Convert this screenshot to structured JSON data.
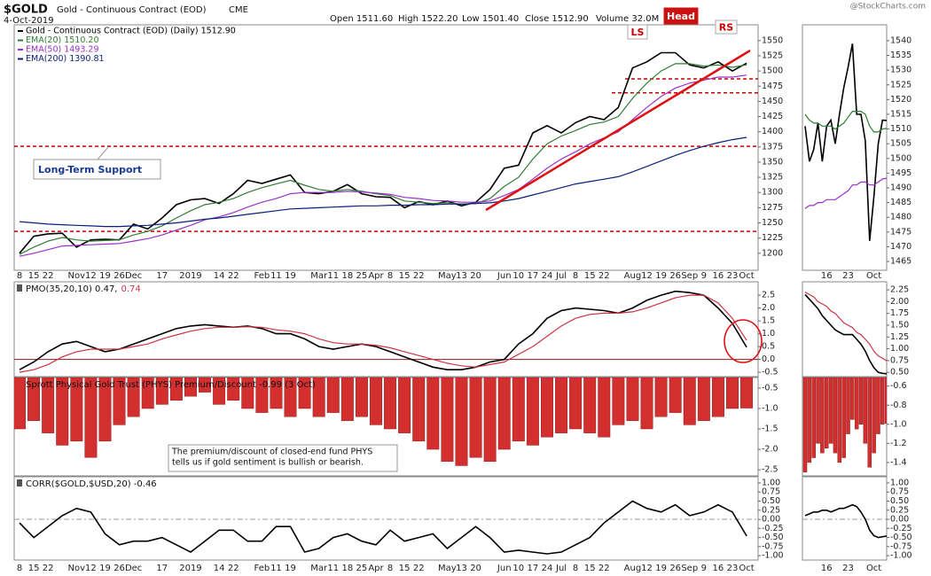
{
  "header": {
    "symbol": "$GOLD",
    "name": "Gold - Continuous Contract (EOD)",
    "exchange": "CME",
    "date": "4-Oct-2019",
    "quote": [
      "Open 1511.60",
      "High 1522.20",
      "Low 1501.40",
      "Close 1512.90",
      "Volume 32.0M"
    ],
    "credit": "@StockCharts.com"
  },
  "chart_data": [
    {
      "type": "line",
      "categories": [
        "8",
        "15",
        "22",
        null,
        "Nov",
        "12",
        "19",
        "26",
        "Dec",
        null,
        "17",
        null,
        "2019",
        null,
        "14",
        "22",
        null,
        "Feb",
        "11",
        "19",
        null,
        "Mar",
        "11",
        "18",
        "25",
        "Apr",
        "8",
        "15",
        "22",
        null,
        "May",
        "13",
        "20",
        null,
        "Jun",
        "10",
        "17",
        "24",
        "Jul",
        "8",
        "15",
        "22",
        null,
        "Aug",
        "12",
        "19",
        "26",
        "Sep",
        "9",
        "16",
        "23",
        "Oct"
      ],
      "series": [
        {
          "name": "Gold - Continuous Contract (EOD) (Daily) 1512.90",
          "color": "#000000",
          "values": [
            1200,
            1228,
            1232,
            1233,
            1210,
            1222,
            1223,
            1222,
            1248,
            1240,
            1258,
            1280,
            1288,
            1290,
            1282,
            1298,
            1320,
            1315,
            1322,
            1329,
            1300,
            1298,
            1302,
            1313,
            1298,
            1293,
            1292,
            1275,
            1285,
            1280,
            1286,
            1278,
            1284,
            1305,
            1340,
            1345,
            1398,
            1410,
            1398,
            1415,
            1425,
            1420,
            1440,
            1505,
            1515,
            1530,
            1530,
            1510,
            1505,
            1515,
            1500,
            1512.9
          ]
        },
        {
          "name": "EMA(20) 1510.20",
          "color": "#2e7d32",
          "values": [
            1198,
            1210,
            1220,
            1226,
            1222,
            1220,
            1221,
            1222,
            1230,
            1236,
            1245,
            1258,
            1270,
            1280,
            1284,
            1290,
            1300,
            1308,
            1314,
            1320,
            1312,
            1305,
            1302,
            1305,
            1302,
            1298,
            1295,
            1286,
            1284,
            1282,
            1283,
            1281,
            1282,
            1290,
            1310,
            1325,
            1355,
            1380,
            1393,
            1402,
            1412,
            1416,
            1425,
            1455,
            1480,
            1500,
            1512,
            1512,
            1508,
            1510,
            1506,
            1510.2
          ]
        },
        {
          "name": "EMA(50) 1493.29",
          "color": "#9b30c8",
          "values": [
            1195,
            1200,
            1206,
            1212,
            1213,
            1214,
            1215,
            1216,
            1220,
            1224,
            1230,
            1238,
            1246,
            1255,
            1260,
            1267,
            1276,
            1284,
            1290,
            1298,
            1300,
            1300,
            1300,
            1302,
            1301,
            1299,
            1297,
            1292,
            1290,
            1287,
            1286,
            1284,
            1284,
            1286,
            1295,
            1305,
            1322,
            1340,
            1355,
            1367,
            1380,
            1390,
            1400,
            1420,
            1440,
            1458,
            1472,
            1480,
            1485,
            1490,
            1490,
            1493.29
          ]
        },
        {
          "name": "EMA(200) 1390.81",
          "color": "#0a1f7a",
          "values": [
            1252,
            1250,
            1248,
            1247,
            1246,
            1245,
            1244,
            1244,
            1245,
            1246,
            1248,
            1250,
            1253,
            1256,
            1258,
            1261,
            1264,
            1267,
            1270,
            1273,
            1274,
            1275,
            1276,
            1277,
            1278,
            1278,
            1279,
            1279,
            1280,
            1280,
            1281,
            1281,
            1282,
            1283,
            1286,
            1290,
            1296,
            1302,
            1308,
            1314,
            1318,
            1322,
            1326,
            1334,
            1343,
            1352,
            1361,
            1369,
            1376,
            1382,
            1387,
            1390.81
          ]
        }
      ],
      "ylim": [
        1172,
        1576
      ],
      "yticks": [
        1200,
        1225,
        1250,
        1275,
        1300,
        1325,
        1350,
        1375,
        1400,
        1425,
        1450,
        1475,
        1500,
        1525,
        1550
      ],
      "hlines": [
        1376,
        1236,
        1487,
        1464
      ],
      "hline_color": "#cc0000",
      "annotations": [
        "LS",
        "Head",
        "RS",
        "Long-Term Support"
      ]
    },
    {
      "type": "line",
      "categories": [
        null,
        null,
        null,
        null,
        null,
        "16",
        null,
        null,
        null,
        null,
        "23",
        null,
        null,
        null,
        null,
        null,
        "Oct",
        null,
        null,
        null
      ],
      "series": [
        {
          "color": "#000000",
          "values": [
            1511,
            1499,
            1503,
            1512,
            1499,
            1511,
            1513,
            1505,
            1515,
            1524,
            1531,
            1539,
            1515,
            1515,
            1506,
            1472,
            1487,
            1505,
            1513,
            1512.9
          ]
        },
        {
          "color": "#2e7d32",
          "values": [
            1515,
            1513,
            1512,
            1512,
            1511,
            1511,
            1511,
            1510,
            1511,
            1512,
            1514,
            1516,
            1516,
            1516,
            1515,
            1511,
            1509,
            1509,
            1510,
            1510.2
          ]
        },
        {
          "color": "#9b30c8",
          "values": [
            1483,
            1484,
            1484,
            1485,
            1485,
            1486,
            1486,
            1486,
            1487,
            1488,
            1489,
            1491,
            1491,
            1492,
            1492,
            1491,
            1491,
            1492,
            1493,
            1493.29
          ]
        }
      ],
      "ylim": [
        1462,
        1545.4
      ],
      "yticks": [
        1465,
        1470,
        1475,
        1480,
        1485,
        1490,
        1495,
        1500,
        1505,
        1510,
        1515,
        1520,
        1525,
        1530,
        1535,
        1540
      ]
    },
    {
      "type": "line",
      "title": "PMO(35,20,10) 0.47,",
      "signal_label": "0.74",
      "categories": [
        "8",
        "15",
        "22",
        null,
        "Nov",
        "12",
        "19",
        "26",
        "Dec",
        null,
        "17",
        null,
        "2019",
        null,
        "14",
        "22",
        null,
        "Feb",
        "11",
        "19",
        null,
        "Mar",
        "11",
        "18",
        "25",
        "Apr",
        "8",
        "15",
        "22",
        null,
        "May",
        "13",
        "20",
        null,
        "Jun",
        "10",
        "17",
        "24",
        "Jul",
        "8",
        "15",
        "22",
        null,
        "Aug",
        "12",
        "19",
        "26",
        "Sep",
        "9",
        "16",
        "23",
        "Oct"
      ],
      "series": [
        {
          "color": "#000000",
          "values": [
            -0.4,
            -0.1,
            0.3,
            0.6,
            0.7,
            0.5,
            0.3,
            0.4,
            0.6,
            0.8,
            1.0,
            1.2,
            1.3,
            1.35,
            1.3,
            1.25,
            1.3,
            1.2,
            1.0,
            1.0,
            0.8,
            0.5,
            0.4,
            0.5,
            0.6,
            0.5,
            0.3,
            0.1,
            -0.1,
            -0.3,
            -0.4,
            -0.4,
            -0.3,
            -0.1,
            0.0,
            0.6,
            1.0,
            1.6,
            1.9,
            2.0,
            1.95,
            1.9,
            1.8,
            2.0,
            2.3,
            2.5,
            2.65,
            2.6,
            2.5,
            2.0,
            1.4,
            0.47
          ]
        },
        {
          "color": "#cc3344",
          "values": [
            -0.5,
            -0.4,
            -0.2,
            0.1,
            0.3,
            0.4,
            0.4,
            0.4,
            0.5,
            0.6,
            0.8,
            0.95,
            1.1,
            1.2,
            1.25,
            1.25,
            1.27,
            1.25,
            1.15,
            1.1,
            1.0,
            0.8,
            0.65,
            0.6,
            0.6,
            0.55,
            0.45,
            0.3,
            0.15,
            0.0,
            -0.15,
            -0.25,
            -0.3,
            -0.2,
            -0.1,
            0.2,
            0.5,
            0.9,
            1.3,
            1.6,
            1.75,
            1.8,
            1.8,
            1.85,
            2.0,
            2.2,
            2.4,
            2.5,
            2.5,
            2.2,
            1.6,
            0.74
          ]
        }
      ],
      "ylim": [
        -0.67,
        3.02
      ],
      "yticks": [
        -0.5,
        {
          "value": 0,
          "label": "0.0"
        },
        0.5,
        {
          "value": 1,
          "label": "1.0"
        },
        1.5,
        {
          "value": 2,
          "label": "2.0"
        },
        2.5
      ],
      "zero_line_color": "#8b1a1a"
    },
    {
      "type": "line",
      "categories": [
        null,
        null,
        null,
        null,
        null,
        "16",
        null,
        null,
        null,
        null,
        "23",
        null,
        null,
        null,
        null,
        null,
        "Oct",
        null,
        null,
        null
      ],
      "series": [
        {
          "color": "#000000",
          "values": [
            2.15,
            2.05,
            1.95,
            1.85,
            1.7,
            1.6,
            1.5,
            1.4,
            1.35,
            1.3,
            1.3,
            1.3,
            1.2,
            1.1,
            0.95,
            0.75,
            0.6,
            0.5,
            0.48,
            0.47
          ]
        },
        {
          "color": "#cc3344",
          "values": [
            2.2,
            2.15,
            2.1,
            2.0,
            1.95,
            1.9,
            1.8,
            1.75,
            1.65,
            1.55,
            1.5,
            1.45,
            1.35,
            1.3,
            1.2,
            1.1,
            0.95,
            0.85,
            0.8,
            0.74
          ]
        }
      ],
      "ylim": [
        0.41,
        2.42
      ],
      "yticks": [
        {
          "value": 0.5,
          "label": "0.50"
        },
        0.75,
        {
          "value": 1,
          "label": "1.00"
        },
        1.25,
        {
          "value": 1.5,
          "label": "1.50"
        },
        1.75,
        {
          "value": 2,
          "label": "2.00"
        },
        2.25
      ]
    },
    {
      "type": "bar",
      "title": "Sprott Physical Gold Trust (PHYS) Premium/Discount -0.99 (3 Oct)",
      "note": [
        "The premium/discount of closed-end fund PHYS",
        "tells us if gold sentiment is bullish or bearish."
      ],
      "categories": [
        "8",
        "15",
        "22",
        null,
        "Nov",
        "12",
        "19",
        "26",
        "Dec",
        null,
        "17",
        null,
        "2019",
        null,
        "14",
        "22",
        null,
        "Feb",
        "11",
        "19",
        null,
        "Mar",
        "11",
        "18",
        "25",
        "Apr",
        "8",
        "15",
        "22",
        null,
        "May",
        "13",
        "20",
        null,
        "Jun",
        "10",
        "17",
        "24",
        "Jul",
        "8",
        "15",
        "22",
        null,
        "Aug",
        "12",
        "19",
        "26",
        "Sep",
        "9",
        "16",
        "23",
        "Oct"
      ],
      "series": [
        {
          "color": "#d32f2f",
          "values": [
            -1.5,
            -1.3,
            -1.6,
            -1.9,
            -1.8,
            -2.2,
            -1.8,
            -1.4,
            -1.2,
            -1.0,
            -0.9,
            -0.8,
            -0.7,
            -0.6,
            -0.9,
            -0.8,
            -1.0,
            -1.1,
            -1.0,
            -1.2,
            -1.0,
            -1.2,
            -1.1,
            -1.3,
            -1.2,
            -1.4,
            -1.5,
            -1.6,
            -1.8,
            -2.0,
            -2.3,
            -2.4,
            -2.2,
            -2.3,
            -2.0,
            -1.8,
            -1.9,
            -1.7,
            -1.6,
            -1.5,
            -1.6,
            -1.7,
            -1.4,
            -1.3,
            -1.5,
            -1.2,
            -1.1,
            -1.4,
            -1.3,
            -1.2,
            -1.0,
            -0.99
          ]
        }
      ],
      "ylim": [
        -2.65,
        -0.24
      ],
      "yticks": [
        -2.5,
        {
          "value": -2,
          "label": "-2.0"
        },
        -1.5,
        {
          "value": -1,
          "label": "-1.0"
        },
        -0.5
      ]
    },
    {
      "type": "bar",
      "categories": [
        null,
        null,
        null,
        null,
        null,
        "16",
        null,
        null,
        null,
        null,
        "23",
        null,
        null,
        null,
        null,
        null,
        "Oct",
        null,
        null,
        null
      ],
      "series": [
        {
          "color": "#d32f2f",
          "values": [
            -1.5,
            -1.4,
            -1.35,
            -1.2,
            -1.3,
            -1.25,
            -1.2,
            -1.3,
            -1.4,
            -1.35,
            -1.1,
            -0.95,
            -1.05,
            -1.0,
            -1.2,
            -1.45,
            -1.3,
            -1.1,
            -1.0,
            -0.99
          ]
        }
      ],
      "ylim": [
        -1.54,
        -0.51
      ],
      "yticks": [
        -1.4,
        -1.2,
        {
          "value": -1,
          "label": "-1.0"
        },
        -0.8,
        -0.6
      ]
    },
    {
      "type": "line",
      "title": "CORR($GOLD,$USD,20) -0.46",
      "categories": [
        "8",
        "15",
        "22",
        null,
        "Nov",
        "12",
        "19",
        "26",
        "Dec",
        null,
        "17",
        null,
        "2019",
        null,
        "14",
        "22",
        null,
        "Feb",
        "11",
        "19",
        null,
        "Mar",
        "11",
        "18",
        "25",
        "Apr",
        "8",
        "15",
        "22",
        null,
        "May",
        "13",
        "20",
        null,
        "Jun",
        "10",
        "17",
        "24",
        "Jul",
        "8",
        "15",
        "22",
        null,
        "Aug",
        "12",
        "19",
        "26",
        "Sep",
        "9",
        "16",
        "23",
        "Oct"
      ],
      "series": [
        {
          "color": "#000000",
          "values": [
            -0.1,
            -0.5,
            -0.2,
            0.1,
            0.3,
            0.2,
            -0.4,
            -0.7,
            -0.6,
            -0.6,
            -0.5,
            -0.7,
            -0.9,
            -0.6,
            -0.3,
            -0.3,
            -0.6,
            -0.6,
            -0.2,
            -0.2,
            -0.9,
            -0.8,
            -0.5,
            -0.4,
            -0.6,
            -0.7,
            -0.3,
            -0.6,
            -0.5,
            -0.4,
            -0.8,
            -0.5,
            -0.2,
            -0.5,
            -0.9,
            -0.85,
            -0.9,
            -0.95,
            -0.9,
            -0.7,
            -0.5,
            -0.1,
            0.2,
            0.5,
            0.3,
            0.2,
            0.4,
            0.1,
            0.2,
            0.4,
            0.2,
            -0.46
          ]
        }
      ],
      "ylim": [
        -1.12,
        1.17
      ],
      "yticks": [
        {
          "value": -1,
          "label": "-1.00"
        },
        -0.75,
        {
          "value": -0.5,
          "label": "-0.50"
        },
        -0.25,
        {
          "value": 0,
          "label": "0.00"
        },
        0.25,
        {
          "value": 0.5,
          "label": "0.50"
        },
        0.75,
        {
          "value": 1,
          "label": "1.00"
        }
      ],
      "zero_line_color": "#999999"
    },
    {
      "type": "line",
      "categories": [
        null,
        null,
        null,
        null,
        null,
        "16",
        null,
        null,
        null,
        null,
        "23",
        null,
        null,
        null,
        null,
        null,
        "Oct",
        null,
        null,
        null
      ],
      "series": [
        {
          "color": "#000000",
          "values": [
            0.1,
            0.15,
            0.2,
            0.2,
            0.25,
            0.25,
            0.2,
            0.25,
            0.3,
            0.3,
            0.35,
            0.4,
            0.35,
            0.2,
            0.0,
            -0.3,
            -0.45,
            -0.5,
            -0.48,
            -0.46
          ]
        }
      ],
      "ylim": [
        -1.12,
        1.17
      ],
      "yticks": [
        {
          "value": -1,
          "label": "-1.00"
        },
        -0.75,
        {
          "value": -0.5,
          "label": "-0.50"
        },
        -0.25,
        {
          "value": 0,
          "label": "0.00"
        },
        0.25,
        {
          "value": 0.5,
          "label": "0.50"
        },
        0.75,
        {
          "value": 1,
          "label": "1.00"
        }
      ],
      "zero_line_color": "#999999"
    }
  ]
}
